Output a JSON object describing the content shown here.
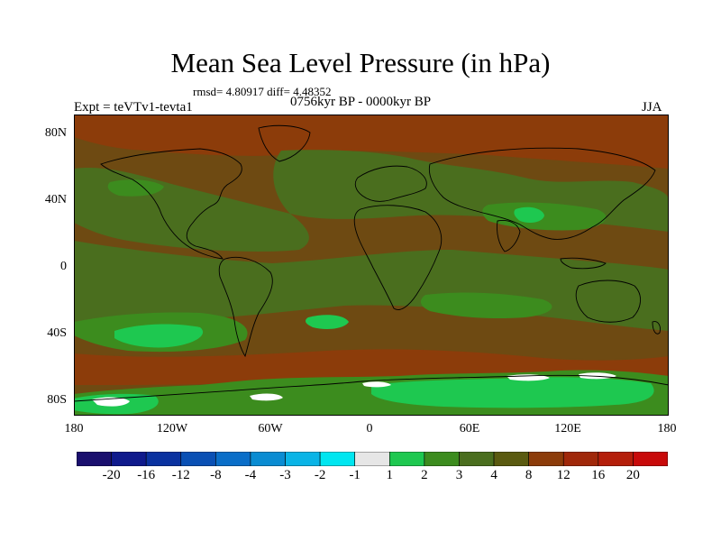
{
  "title": "Mean Sea Level Pressure (in hPa)",
  "stats": "rmsd= 4.80917  diff= 4.48352",
  "experiment": "Expt = teVTv1-tevta1",
  "period": "0756kyr BP - 0000kyr BP",
  "season": "JJA",
  "lat_labels": [
    "80N",
    "40N",
    "0",
    "40S",
    "80S"
  ],
  "lon_labels": [
    "180",
    "120W",
    "60W",
    "0",
    "60E",
    "120E",
    "180"
  ],
  "colorbar": {
    "labels": [
      "-20",
      "-16",
      "-12",
      "-8",
      "-4",
      "-3",
      "-2",
      "-1",
      "1",
      "2",
      "3",
      "4",
      "8",
      "12",
      "16",
      "20"
    ],
    "colors": [
      "#1a0f6e",
      "#0f1a8c",
      "#0a32a0",
      "#0a50b4",
      "#0a6ec8",
      "#0a8cd2",
      "#0ab4e6",
      "#00e6f0",
      "#e6e6e6",
      "#1ec850",
      "#3c8c1e",
      "#4a6e1e",
      "#5a5a10",
      "#8c3c0a",
      "#a0280a",
      "#b41e0a",
      "#c80a0a"
    ]
  },
  "map_colors": {
    "background": "#6e4a12",
    "green_2": "#1ec850",
    "green_3": "#3c8c1e",
    "olive_4": "#4a6e1e",
    "brown_8": "#6e4a12",
    "rust_12": "#8c3c0a",
    "red_16": "#b41e0a",
    "white": "#ffffff",
    "coast": "#000000"
  }
}
